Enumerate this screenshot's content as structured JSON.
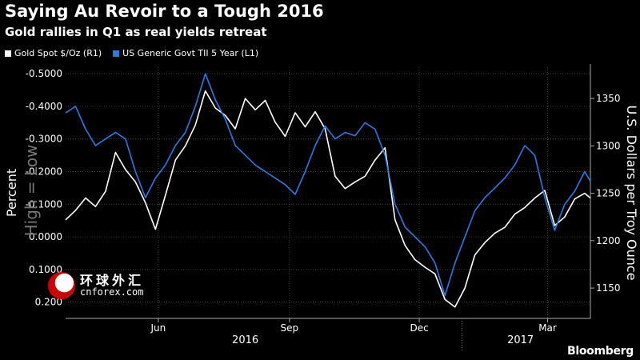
{
  "header": {
    "title": "Saying Au Revoir to a Tough 2016",
    "subtitle": "Gold rallies in Q1 as real yields retreat"
  },
  "brand": "Bloomberg",
  "watermark": {
    "cn": "环球外汇",
    "en": "cnforex.com"
  },
  "colors": {
    "gold": "#ffffff",
    "tii": "#2a7be4",
    "grid": "#5a5a5a",
    "background": "#000000"
  },
  "chart_data": {
    "type": "line",
    "legend_placement": "top-left",
    "grid": true,
    "left_axis": {
      "label": "Percent",
      "overlay_label": "High = Low",
      "inverted": true,
      "range": [
        0.25,
        -0.52
      ],
      "ticks": [
        -0.5,
        -0.4,
        -0.3,
        -0.2,
        -0.1,
        0.0,
        0.1,
        0.2
      ],
      "tick_labels": [
        "-0.5000",
        "-0.4000",
        "-0.3000",
        "-0.2000",
        "-0.1000",
        "0.0000",
        "0.1000",
        "0.200"
      ]
    },
    "right_axis": {
      "label": "U.S. Dollars per Troy Ounce",
      "range": [
        1118,
        1383
      ],
      "ticks": [
        1150,
        1200,
        1250,
        1300,
        1350
      ],
      "tick_labels": [
        "1150",
        "1200",
        "1250",
        "1300",
        "1350"
      ]
    },
    "x_axis": {
      "range": [
        "2016-03-28",
        "2017-03-31"
      ],
      "month_ticks": [
        {
          "date": "2016-06-01",
          "label": "Jun"
        },
        {
          "date": "2016-09-01",
          "label": "Sep"
        },
        {
          "date": "2016-12-01",
          "label": "Dec"
        },
        {
          "date": "2017-03-01",
          "label": "Mar"
        }
      ],
      "year_labels": [
        {
          "date": "2016-08-01",
          "label": "2016"
        },
        {
          "date": "2017-02-10",
          "label": "2017"
        }
      ],
      "year_boundary": "2016-12-31"
    },
    "series": [
      {
        "name": "Gold Spot $/Oz (R1)",
        "axis": "right",
        "color": "#ffffff",
        "points": [
          [
            "2016-03-28",
            1222
          ],
          [
            "2016-04-04",
            1232
          ],
          [
            "2016-04-11",
            1245
          ],
          [
            "2016-04-18",
            1236
          ],
          [
            "2016-04-25",
            1252
          ],
          [
            "2016-05-02",
            1293
          ],
          [
            "2016-05-09",
            1275
          ],
          [
            "2016-05-16",
            1262
          ],
          [
            "2016-05-23",
            1240
          ],
          [
            "2016-05-30",
            1212
          ],
          [
            "2016-06-06",
            1248
          ],
          [
            "2016-06-13",
            1285
          ],
          [
            "2016-06-20",
            1300
          ],
          [
            "2016-06-27",
            1322
          ],
          [
            "2016-07-04",
            1358
          ],
          [
            "2016-07-11",
            1340
          ],
          [
            "2016-07-18",
            1332
          ],
          [
            "2016-07-25",
            1318
          ],
          [
            "2016-08-01",
            1350
          ],
          [
            "2016-08-08",
            1338
          ],
          [
            "2016-08-15",
            1348
          ],
          [
            "2016-08-22",
            1325
          ],
          [
            "2016-08-29",
            1310
          ],
          [
            "2016-09-05",
            1335
          ],
          [
            "2016-09-12",
            1320
          ],
          [
            "2016-09-19",
            1336
          ],
          [
            "2016-09-26",
            1318
          ],
          [
            "2016-10-03",
            1268
          ],
          [
            "2016-10-10",
            1255
          ],
          [
            "2016-10-17",
            1262
          ],
          [
            "2016-10-24",
            1268
          ],
          [
            "2016-10-31",
            1285
          ],
          [
            "2016-11-07",
            1298
          ],
          [
            "2016-11-14",
            1222
          ],
          [
            "2016-11-21",
            1195
          ],
          [
            "2016-11-28",
            1180
          ],
          [
            "2016-12-05",
            1172
          ],
          [
            "2016-12-12",
            1165
          ],
          [
            "2016-12-19",
            1138
          ],
          [
            "2016-12-26",
            1130
          ],
          [
            "2017-01-02",
            1150
          ],
          [
            "2017-01-09",
            1185
          ],
          [
            "2017-01-16",
            1198
          ],
          [
            "2017-01-23",
            1208
          ],
          [
            "2017-01-30",
            1214
          ],
          [
            "2017-02-06",
            1228
          ],
          [
            "2017-02-13",
            1235
          ],
          [
            "2017-02-20",
            1245
          ],
          [
            "2017-02-27",
            1253
          ],
          [
            "2017-03-06",
            1216
          ],
          [
            "2017-03-13",
            1225
          ],
          [
            "2017-03-20",
            1244
          ],
          [
            "2017-03-27",
            1250
          ],
          [
            "2017-03-31",
            1245
          ]
        ]
      },
      {
        "name": "US Generic Govt TII 5 Year (L1)",
        "axis": "left",
        "color": "#2a7be4",
        "points": [
          [
            "2016-03-28",
            -0.38
          ],
          [
            "2016-04-04",
            -0.4
          ],
          [
            "2016-04-11",
            -0.33
          ],
          [
            "2016-04-18",
            -0.28
          ],
          [
            "2016-04-25",
            -0.3
          ],
          [
            "2016-05-02",
            -0.32
          ],
          [
            "2016-05-09",
            -0.3
          ],
          [
            "2016-05-16",
            -0.2
          ],
          [
            "2016-05-23",
            -0.12
          ],
          [
            "2016-05-30",
            -0.18
          ],
          [
            "2016-06-06",
            -0.22
          ],
          [
            "2016-06-13",
            -0.28
          ],
          [
            "2016-06-20",
            -0.32
          ],
          [
            "2016-06-27",
            -0.4
          ],
          [
            "2016-07-04",
            -0.5
          ],
          [
            "2016-07-11",
            -0.42
          ],
          [
            "2016-07-18",
            -0.36
          ],
          [
            "2016-07-25",
            -0.28
          ],
          [
            "2016-08-01",
            -0.25
          ],
          [
            "2016-08-08",
            -0.22
          ],
          [
            "2016-08-15",
            -0.2
          ],
          [
            "2016-08-22",
            -0.18
          ],
          [
            "2016-08-29",
            -0.16
          ],
          [
            "2016-09-05",
            -0.13
          ],
          [
            "2016-09-12",
            -0.2
          ],
          [
            "2016-09-19",
            -0.28
          ],
          [
            "2016-09-26",
            -0.34
          ],
          [
            "2016-10-03",
            -0.3
          ],
          [
            "2016-10-10",
            -0.32
          ],
          [
            "2016-10-17",
            -0.31
          ],
          [
            "2016-10-24",
            -0.35
          ],
          [
            "2016-10-31",
            -0.33
          ],
          [
            "2016-11-07",
            -0.25
          ],
          [
            "2016-11-14",
            -0.1
          ],
          [
            "2016-11-21",
            -0.03
          ],
          [
            "2016-11-28",
            0.0
          ],
          [
            "2016-12-05",
            0.03
          ],
          [
            "2016-12-12",
            0.08
          ],
          [
            "2016-12-19",
            0.18
          ],
          [
            "2016-12-26",
            0.08
          ],
          [
            "2017-01-02",
            0.0
          ],
          [
            "2017-01-09",
            -0.08
          ],
          [
            "2017-01-16",
            -0.12
          ],
          [
            "2017-01-23",
            -0.15
          ],
          [
            "2017-01-30",
            -0.18
          ],
          [
            "2017-02-06",
            -0.22
          ],
          [
            "2017-02-13",
            -0.28
          ],
          [
            "2017-02-20",
            -0.25
          ],
          [
            "2017-02-27",
            -0.12
          ],
          [
            "2017-03-06",
            -0.02
          ],
          [
            "2017-03-13",
            -0.1
          ],
          [
            "2017-03-20",
            -0.14
          ],
          [
            "2017-03-27",
            -0.2
          ],
          [
            "2017-03-31",
            -0.17
          ]
        ]
      }
    ]
  }
}
